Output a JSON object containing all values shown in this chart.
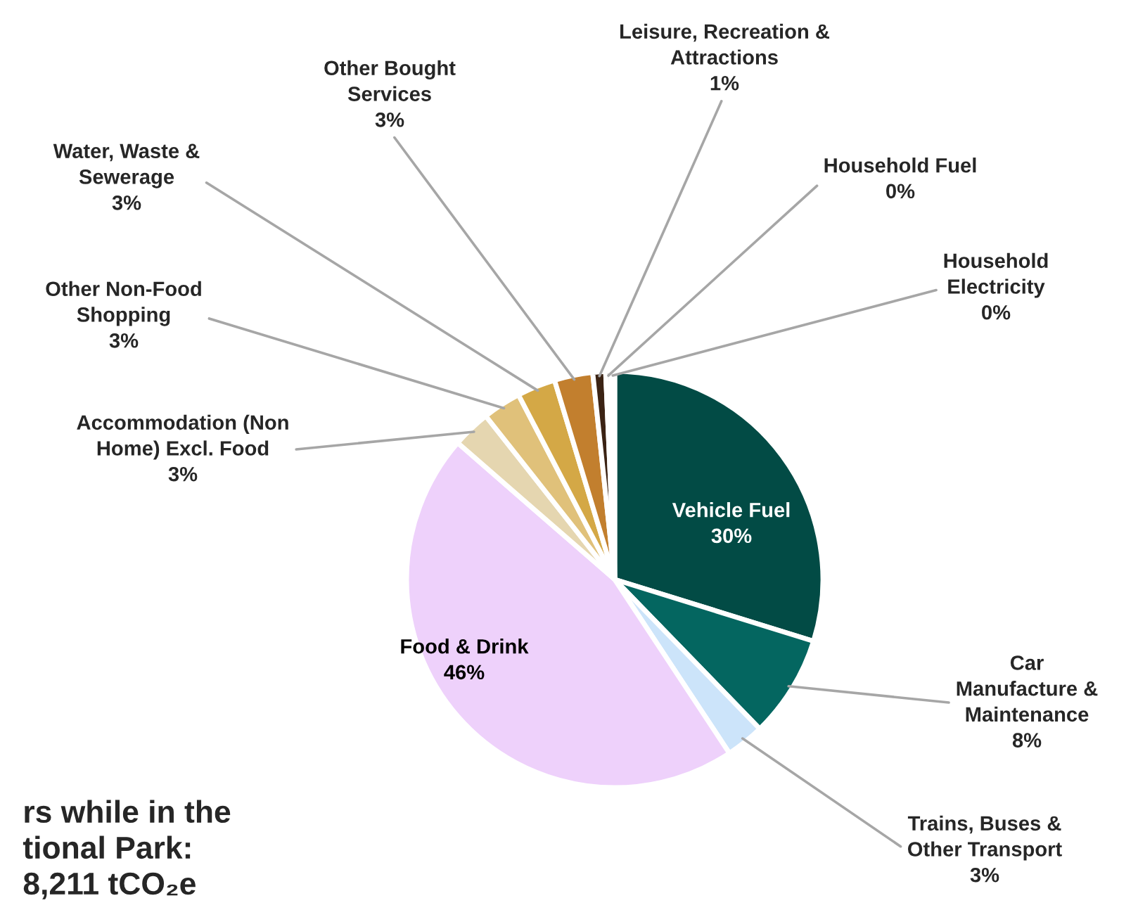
{
  "chart_data": {
    "type": "pie",
    "categories": [
      "Vehicle Fuel",
      "Car\nManufacture &\nMaintenance",
      "Trains, Buses &\nOther Transport",
      "Food & Drink",
      "Accommodation (Non\nHome) Excl. Food",
      "Other Non-Food\nShopping",
      "Water, Waste &\nSewerage",
      "Other Bought\nServices",
      "Leisure, Recreation &\nAttractions",
      "Household Fuel",
      "Household\nElectricity"
    ],
    "values": [
      30,
      8,
      3,
      46,
      3,
      3,
      3,
      3,
      1,
      0.4,
      0.3
    ],
    "value_labels": [
      "30%",
      "8%",
      "3%",
      "46%",
      "3%",
      "3%",
      "3%",
      "3%",
      "1%",
      "0%",
      "0%"
    ],
    "colors": [
      "#024b45",
      "#046660",
      "#cce4fa",
      "#eed1fb",
      "#e5d6b0",
      "#e0c17a",
      "#d4a846",
      "#c27f2e",
      "#3b2314",
      "#1a1a1a",
      "#e8e8e8"
    ],
    "annotations": [
      "rs while in the\ntional Park:\n8,211 tCO₂e"
    ]
  }
}
